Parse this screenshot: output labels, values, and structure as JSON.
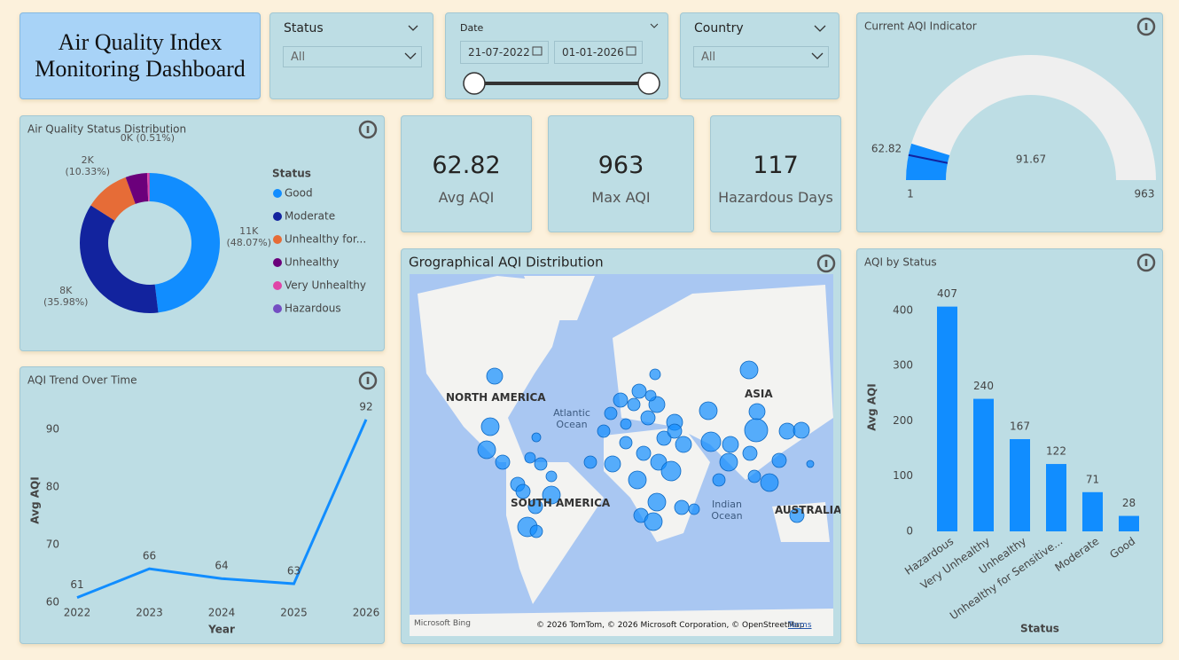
{
  "header": {
    "title": "Air Quality Index Monitoring Dashboard"
  },
  "filters": [
    {
      "label": "Status",
      "value": "All"
    },
    {
      "label": "Date",
      "start": "21-07-2022",
      "end": "01-01-2026"
    },
    {
      "label": "Country",
      "value": "All"
    }
  ],
  "kpis": [
    {
      "value": 62.82,
      "label": "Avg AQI"
    },
    {
      "value": 963,
      "label": "Max AQI"
    },
    {
      "value": 117,
      "label": "Hazardous Days"
    }
  ],
  "map": {
    "title": "Grographical AQI Distribution",
    "labels": [
      "NORTH AMERICA",
      "SOUTH AMERICA",
      "ASIA",
      "AUSTRALIA",
      "Atlantic Ocean",
      "Indian Ocean",
      "Microsoft Bing",
      "© 2026 TomTom, © 2026 Microsoft Corporation, © OpenStreetMap",
      "Terms"
    ]
  },
  "chart_data": [
    {
      "type": "pie",
      "title": "Air Quality Status Distribution",
      "legend_title": "Status",
      "categories": [
        "Good",
        "Moderate",
        "Unhealthy for...",
        "Unhealthy",
        "Very Unhealthy",
        "Hazardous"
      ],
      "values": [
        48.07,
        35.98,
        10.33,
        5.0,
        0.51,
        0.11
      ],
      "value_labels": [
        "11K (48.07%)",
        "8K (35.98%)",
        "2K (10.33%)",
        null,
        "0K (0.51%)",
        null
      ],
      "colors": [
        "#118dff",
        "#12239e",
        "#e66c37",
        "#6b007b",
        "#e044a7",
        "#744ec2"
      ]
    },
    {
      "type": "line",
      "title": "AQI Trend Over Time",
      "x_label": "Year",
      "y_label": "Avg AQI",
      "x": [
        2022,
        2023,
        2024,
        2025,
        2026
      ],
      "values": [
        60.8,
        65.8,
        64.1,
        63.2,
        91.7
      ],
      "value_labels": [
        "61",
        "66",
        "64",
        "63",
        "92"
      ],
      "color": "#118dff",
      "xlim": [
        2022,
        2026
      ],
      "xticks": [
        2022,
        2023,
        2024,
        2025,
        2026
      ],
      "ylim": [
        58.9,
        94.6
      ],
      "yticks": [
        60,
        70,
        80,
        90
      ]
    },
    {
      "type": "bar",
      "title": "AQI by Status",
      "x_label": "Status",
      "y_label": "Avg AQI",
      "categories": [
        "Hazardous",
        "Very Unhealthy",
        "Unhealthy",
        "Unhealthy for Sensitive...",
        "Moderate",
        "Good"
      ],
      "values": [
        407,
        240,
        167,
        122,
        71,
        28
      ],
      "color": "#118dff",
      "ylim": [
        0,
        430
      ],
      "yticks": [
        0,
        100,
        200,
        300,
        400
      ]
    },
    {
      "type": "gauge",
      "title": "Current AQI Indicator",
      "value": 91.67,
      "min": 1,
      "max": 963,
      "target": 62.82,
      "color": "#118dff"
    }
  ]
}
